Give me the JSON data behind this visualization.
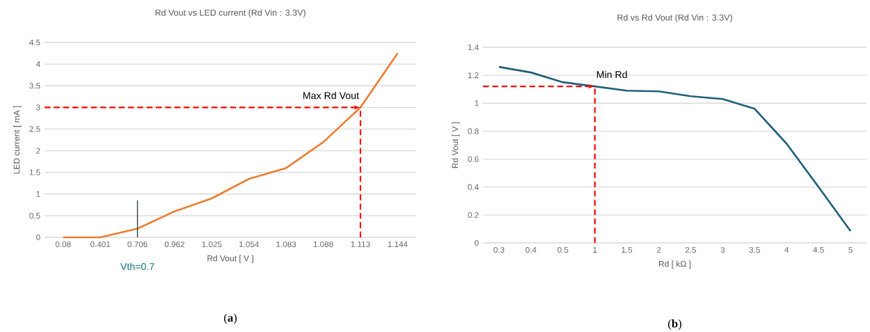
{
  "chart_data": [
    {
      "type": "line",
      "title": "Rd Vout vs LED current (Rd Vin : 3.3V)",
      "xlabel": "Rd Vout [ V ]",
      "ylabel": "LED current [ mA ]",
      "categories": [
        "0.08",
        "0.401",
        "0.706",
        "0.962",
        "1.025",
        "1.054",
        "1.083",
        "1.088",
        "1.113",
        "1.144"
      ],
      "values": [
        0,
        0,
        0.2,
        0.6,
        0.9,
        1.35,
        1.6,
        2.2,
        3.0,
        4.25
      ],
      "color": "#ed7d31",
      "ylim": [
        0,
        4.5
      ],
      "yticks": [
        0,
        0.5,
        1,
        1.5,
        2,
        2.5,
        3,
        3.5,
        4,
        4.5
      ],
      "grid": "y",
      "annotations": [
        {
          "text": "Max Rd Vout",
          "x": "1.113",
          "y": 3.0
        },
        "(**a**)"
      ],
      "ref_lines": [
        {
          "axis": "x",
          "value": "0.706",
          "label": "Vth=0.7",
          "color": "#1f3a4d"
        },
        {
          "axis": "y",
          "value": 3.0,
          "color": "#ff0000",
          "line_style": "dashed"
        },
        {
          "axis": "x",
          "value": "1.113",
          "color": "#ff0000",
          "line_style": "dashed"
        }
      ]
    },
    {
      "type": "line",
      "title": "Rd vs Rd Vout (Rd Vin : 3.3V)",
      "xlabel": "Rd [ kΩ ]",
      "ylabel": "Rd Vout [ V ]",
      "categories": [
        "0.3",
        "0.4",
        "0.5",
        "1",
        "1.5",
        "2",
        "2.5",
        "3",
        "3.5",
        "4",
        "4.5",
        "5"
      ],
      "values": [
        1.26,
        1.22,
        1.15,
        1.12,
        1.09,
        1.085,
        1.05,
        1.03,
        0.96,
        0.71,
        0.4,
        0.085
      ],
      "color": "#1f5f7a",
      "ylim": [
        0,
        1.4
      ],
      "yticks": [
        0,
        0.2,
        0.4,
        0.6,
        0.8,
        1,
        1.2,
        1.4
      ],
      "grid": "y",
      "annotations": [
        {
          "text": "Min Rd",
          "x": "1",
          "y": 1.12
        },
        "(**b**)"
      ],
      "ref_lines": [
        {
          "axis": "y",
          "value": 1.12,
          "color": "#ff0000",
          "line_style": "dashed"
        },
        {
          "axis": "x",
          "value": "1",
          "color": "#ff0000",
          "line_style": "dashed"
        }
      ]
    }
  ]
}
